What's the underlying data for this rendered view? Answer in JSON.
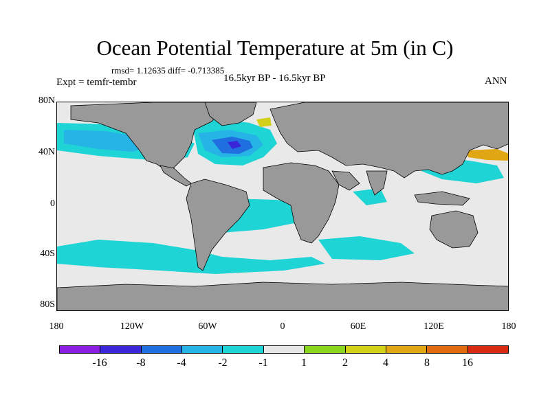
{
  "title": "Ocean Potential Temperature at 5m (in C)",
  "stats": "rmsd= 1.12635  diff= -0.713385",
  "experiment": "Expt = temfr-tembr",
  "period": "16.5kyr BP - 16.5kyr BP",
  "season": "ANN",
  "y_axis_labels": [
    "80N",
    "40N",
    "0",
    "40S",
    "80S"
  ],
  "x_axis_labels": [
    "180",
    "120W",
    "60W",
    "0",
    "60E",
    "120E",
    "180"
  ],
  "colorbar": {
    "labels": [
      "-16",
      "-8",
      "-4",
      "-2",
      "-1",
      "1",
      "2",
      "4",
      "8",
      "16"
    ],
    "colors": [
      "#8a1de0",
      "#3a25d8",
      "#1f6fe0",
      "#26b3e6",
      "#1fd4d4",
      "#e6e6e6",
      "#8ad61e",
      "#d4cf18",
      "#e0a614",
      "#e06a10",
      "#d82a10"
    ]
  },
  "map_colors": {
    "land": "#999999",
    "neutral_ocean": "#e9e9e9",
    "cyan": "#1fd4d4",
    "lightblue": "#26b3e6",
    "blue": "#1f6fe0",
    "darkblue": "#3a25d8",
    "green": "#8ad61e",
    "yellow": "#d4cf18",
    "orange": "#e0a614"
  }
}
